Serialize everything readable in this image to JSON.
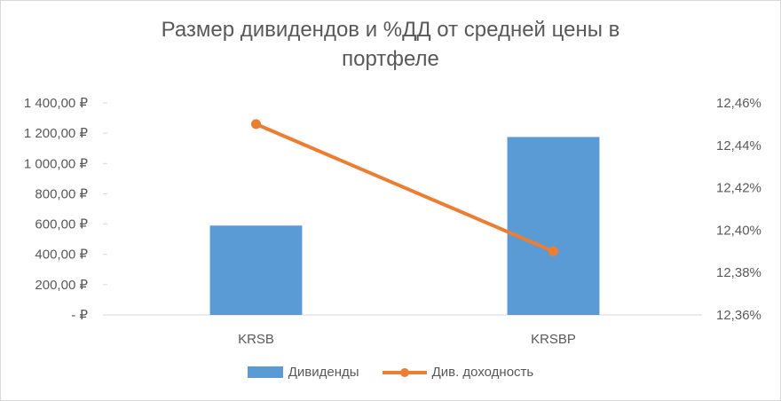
{
  "chart_data": {
    "type": "bar",
    "title": "Размер дивидендов и %ДД от средней цены в портфеле",
    "title_lines": [
      "Размер дивидендов и %ДД от средней цены в",
      "портфеле"
    ],
    "categories": [
      "KRSB",
      "KRSBP"
    ],
    "series": [
      {
        "name": "Дивиденды",
        "type": "bar",
        "axis": "left",
        "color": "#5b9bd5",
        "values": [
          590,
          1175
        ]
      },
      {
        "name": "Див. доходность",
        "type": "line",
        "axis": "right",
        "color": "#ed7d31",
        "values": [
          12.45,
          12.39
        ]
      }
    ],
    "y_left": {
      "ylim": [
        0,
        1400
      ],
      "ticks": [
        0,
        200,
        400,
        600,
        800,
        1000,
        1200,
        1400
      ],
      "tick_labels": [
        "-  ₽",
        "200,00 ₽",
        "400,00 ₽",
        "600,00 ₽",
        "800,00 ₽",
        "1 000,00 ₽",
        "1 200,00 ₽",
        "1 400,00 ₽"
      ]
    },
    "y_right": {
      "ylim": [
        12.36,
        12.46
      ],
      "ticks": [
        12.36,
        12.38,
        12.4,
        12.42,
        12.44,
        12.46
      ],
      "tick_labels": [
        "12,36%",
        "12,38%",
        "12,40%",
        "12,42%",
        "12,44%",
        "12,46%"
      ]
    },
    "grid": false,
    "legend_position": "bottom"
  }
}
